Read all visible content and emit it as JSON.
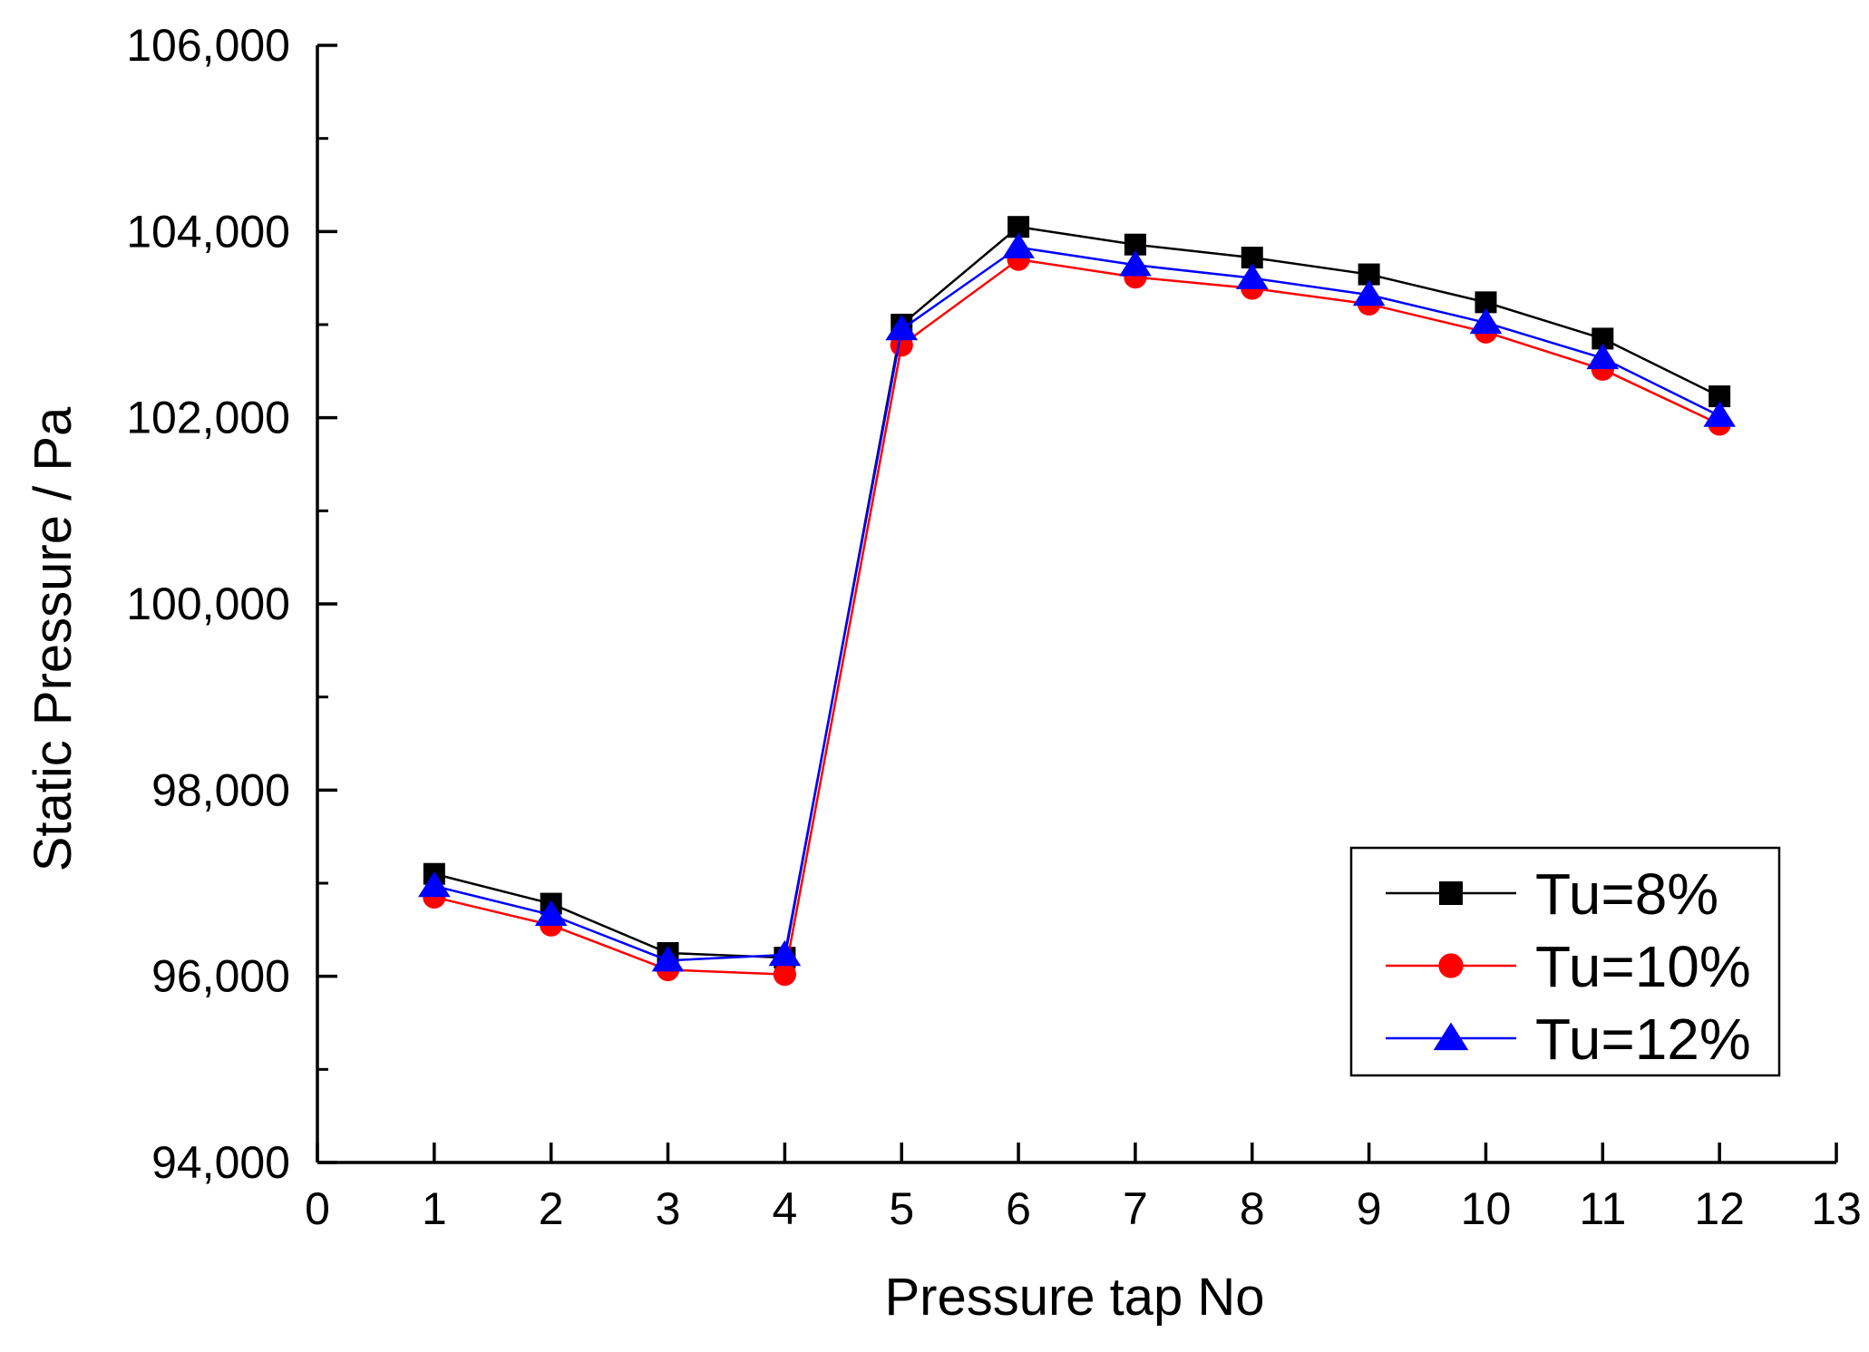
{
  "chart_data": {
    "type": "line",
    "title": "",
    "xlabel": "Pressure tap No",
    "ylabel": "Static Pressure / Pa",
    "xlim": [
      0,
      13
    ],
    "ylim": [
      94000,
      106000
    ],
    "x_ticks": [
      0,
      1,
      2,
      3,
      4,
      5,
      6,
      7,
      8,
      9,
      10,
      11,
      12,
      13
    ],
    "x_tick_labels": [
      "0",
      "1",
      "2",
      "3",
      "4",
      "5",
      "6",
      "7",
      "8",
      "9",
      "10",
      "11",
      "12",
      "13"
    ],
    "y_ticks": [
      94000,
      96000,
      98000,
      100000,
      102000,
      104000,
      106000
    ],
    "y_tick_labels": [
      "94,000",
      "96,000",
      "98,000",
      "100,000",
      "102,000",
      "104,000",
      "106,000"
    ],
    "y_minor_step": 1000,
    "grid": false,
    "legend_position": "bottom-right",
    "x": [
      1,
      2,
      3,
      4,
      5,
      6,
      7,
      8,
      9,
      10,
      11,
      12
    ],
    "series": [
      {
        "name": "Tu=8%",
        "color": "#000000",
        "marker": "square",
        "values": [
          97100,
          96780,
          96250,
          96200,
          103000,
          104050,
          103860,
          103720,
          103540,
          103240,
          102850,
          102230
        ]
      },
      {
        "name": "Tu=10%",
        "color": "#ff0000",
        "marker": "circle",
        "values": [
          96850,
          96550,
          96070,
          96020,
          102780,
          103700,
          103510,
          103390,
          103220,
          102920,
          102520,
          101930
        ]
      },
      {
        "name": "Tu=12%",
        "color": "#0000ff",
        "marker": "triangle",
        "values": [
          96970,
          96660,
          96170,
          96230,
          102950,
          103830,
          103640,
          103500,
          103320,
          103020,
          102640,
          102020
        ]
      }
    ]
  }
}
